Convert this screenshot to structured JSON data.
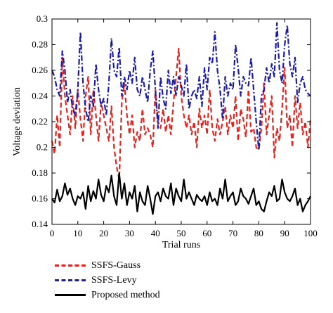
{
  "chart_data": {
    "type": "line",
    "xlabel": "Trial runs",
    "ylabel": "Voltage deviation",
    "xlim": [
      0,
      100
    ],
    "ylim": [
      0.14,
      0.3
    ],
    "xticks": [
      0,
      10,
      20,
      30,
      40,
      50,
      60,
      70,
      80,
      90,
      100
    ],
    "yticks": [
      0.14,
      0.16,
      0.18,
      0.2,
      0.22,
      0.24,
      0.26,
      0.28,
      0.3
    ],
    "xtick_labels": [
      "0",
      "10",
      "20",
      "30",
      "40",
      "50",
      "60",
      "70",
      "80",
      "90",
      "100"
    ],
    "ytick_labels": [
      "0.14",
      "0.16",
      "0.18",
      "0.2",
      "0.22",
      "0.24",
      "0.26",
      "0.28",
      "0.3"
    ],
    "legend_position": "below",
    "series": [
      {
        "name": "SSFS-Gauss",
        "color": "#e8231d",
        "style": "dashed",
        "values": [
          0.205,
          0.195,
          0.225,
          0.2,
          0.27,
          0.24,
          0.225,
          0.21,
          0.24,
          0.215,
          0.245,
          0.222,
          0.205,
          0.24,
          0.255,
          0.21,
          0.245,
          0.225,
          0.205,
          0.235,
          0.225,
          0.215,
          0.205,
          0.232,
          0.2,
          0.185,
          0.175,
          0.235,
          0.25,
          0.225,
          0.21,
          0.225,
          0.2,
          0.212,
          0.205,
          0.23,
          0.21,
          0.215,
          0.21,
          0.2,
          0.245,
          0.22,
          0.215,
          0.23,
          0.212,
          0.225,
          0.21,
          0.235,
          0.255,
          0.277,
          0.24,
          0.225,
          0.215,
          0.225,
          0.21,
          0.22,
          0.2,
          0.23,
          0.215,
          0.225,
          0.21,
          0.245,
          0.215,
          0.205,
          0.222,
          0.21,
          0.22,
          0.232,
          0.21,
          0.225,
          0.215,
          0.24,
          0.205,
          0.23,
          0.222,
          0.208,
          0.245,
          0.212,
          0.215,
          0.2,
          0.198,
          0.215,
          0.25,
          0.21,
          0.225,
          0.24,
          0.192,
          0.215,
          0.205,
          0.23,
          0.262,
          0.215,
          0.225,
          0.2,
          0.24,
          0.215,
          0.235,
          0.21,
          0.22,
          0.2,
          0.222
        ]
      },
      {
        "name": "SSFS-Levy",
        "color": "#1c1caa",
        "style": "dash-dot",
        "values": [
          0.26,
          0.255,
          0.245,
          0.24,
          0.275,
          0.26,
          0.235,
          0.245,
          0.23,
          0.225,
          0.245,
          0.29,
          0.25,
          0.23,
          0.22,
          0.24,
          0.232,
          0.265,
          0.245,
          0.232,
          0.238,
          0.225,
          0.25,
          0.285,
          0.26,
          0.255,
          0.278,
          0.24,
          0.255,
          0.245,
          0.26,
          0.25,
          0.27,
          0.245,
          0.24,
          0.255,
          0.245,
          0.235,
          0.26,
          0.275,
          0.245,
          0.215,
          0.255,
          0.238,
          0.23,
          0.26,
          0.242,
          0.255,
          0.24,
          0.255,
          0.248,
          0.24,
          0.265,
          0.23,
          0.24,
          0.245,
          0.238,
          0.255,
          0.232,
          0.262,
          0.245,
          0.27,
          0.265,
          0.29,
          0.26,
          0.245,
          0.222,
          0.255,
          0.24,
          0.25,
          0.245,
          0.28,
          0.262,
          0.24,
          0.255,
          0.25,
          0.248,
          0.27,
          0.245,
          0.22,
          0.198,
          0.24,
          0.245,
          0.262,
          0.25,
          0.265,
          0.255,
          0.297,
          0.26,
          0.25,
          0.28,
          0.295,
          0.265,
          0.255,
          0.27,
          0.235,
          0.25,
          0.255,
          0.245,
          0.242,
          0.24
        ]
      },
      {
        "name": "Proposed method",
        "color": "#000000",
        "style": "solid",
        "values": [
          0.16,
          0.157,
          0.167,
          0.158,
          0.162,
          0.172,
          0.163,
          0.168,
          0.16,
          0.155,
          0.162,
          0.16,
          0.165,
          0.152,
          0.17,
          0.158,
          0.166,
          0.16,
          0.175,
          0.163,
          0.158,
          0.17,
          0.165,
          0.178,
          0.162,
          0.155,
          0.18,
          0.16,
          0.172,
          0.155,
          0.165,
          0.16,
          0.17,
          0.15,
          0.165,
          0.158,
          0.155,
          0.17,
          0.16,
          0.148,
          0.162,
          0.165,
          0.158,
          0.168,
          0.162,
          0.16,
          0.172,
          0.155,
          0.168,
          0.162,
          0.158,
          0.175,
          0.16,
          0.165,
          0.16,
          0.155,
          0.163,
          0.16,
          0.158,
          0.162,
          0.155,
          0.165,
          0.158,
          0.16,
          0.155,
          0.168,
          0.16,
          0.175,
          0.158,
          0.162,
          0.165,
          0.155,
          0.158,
          0.168,
          0.162,
          0.16,
          0.156,
          0.162,
          0.168,
          0.155,
          0.158,
          0.152,
          0.15,
          0.158,
          0.165,
          0.162,
          0.17,
          0.158,
          0.16,
          0.175,
          0.165,
          0.16,
          0.158,
          0.162,
          0.168,
          0.155,
          0.16,
          0.15,
          0.155,
          0.158,
          0.162
        ]
      }
    ]
  }
}
